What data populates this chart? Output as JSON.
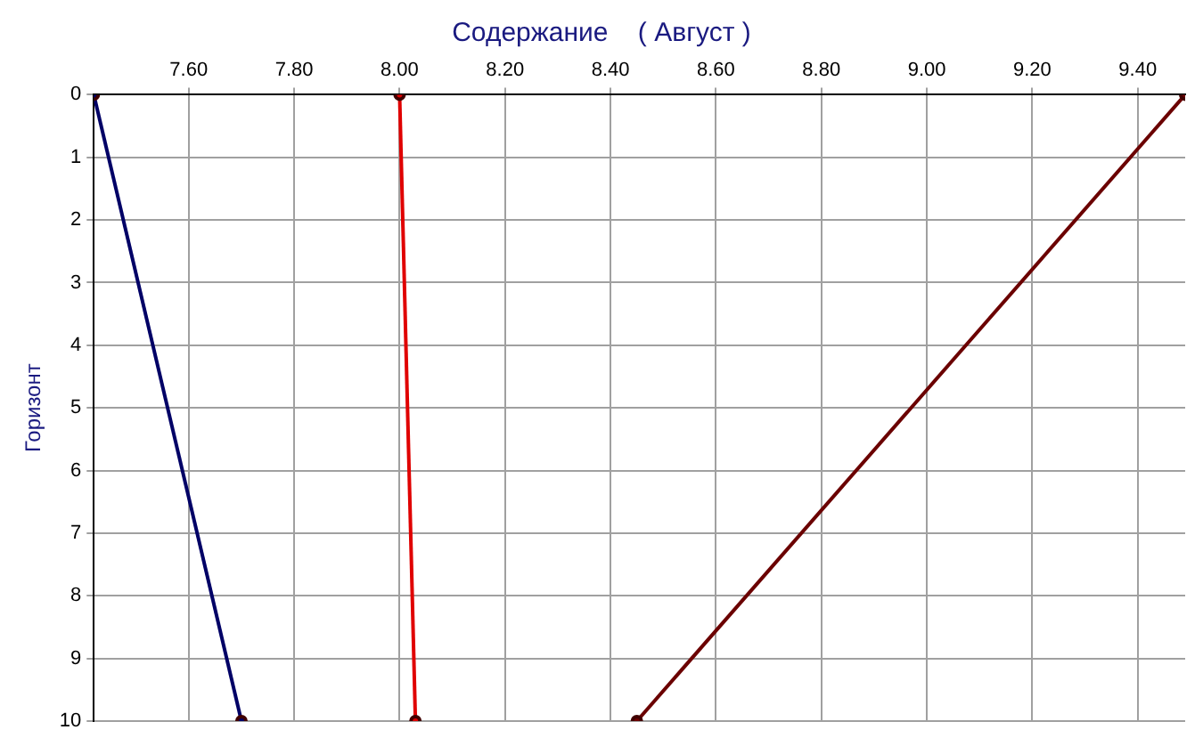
{
  "chart_data": {
    "type": "line",
    "title": "Содержание    ( Август )",
    "ylabel": "Горизонт",
    "xlim": [
      7.42,
      9.49
    ],
    "xticks": [
      {
        "value": 7.6,
        "label": "7.60"
      },
      {
        "value": 7.8,
        "label": "7.80"
      },
      {
        "value": 8.0,
        "label": "8.00"
      },
      {
        "value": 8.2,
        "label": "8.20"
      },
      {
        "value": 8.4,
        "label": "8.40"
      },
      {
        "value": 8.6,
        "label": "8.60"
      },
      {
        "value": 8.8,
        "label": "8.80"
      },
      {
        "value": 9.0,
        "label": "9.00"
      },
      {
        "value": 9.2,
        "label": "9.20"
      },
      {
        "value": 9.4,
        "label": "9.40"
      }
    ],
    "ylim": [
      10,
      0
    ],
    "yticks": [
      0,
      1,
      2,
      3,
      4,
      5,
      6,
      7,
      8,
      9,
      10
    ],
    "series": [
      {
        "color": "#000066",
        "x": [
          7.42,
          7.7
        ],
        "values": [
          0,
          10
        ]
      },
      {
        "color": "#e00000",
        "x": [
          8.0,
          8.03
        ],
        "values": [
          0,
          10
        ]
      },
      {
        "color": "#6b0000",
        "x": [
          9.49,
          8.45
        ],
        "values": [
          0,
          10
        ]
      }
    ],
    "grid": true,
    "legend": false,
    "marker": "circle",
    "line_style": "solid"
  }
}
